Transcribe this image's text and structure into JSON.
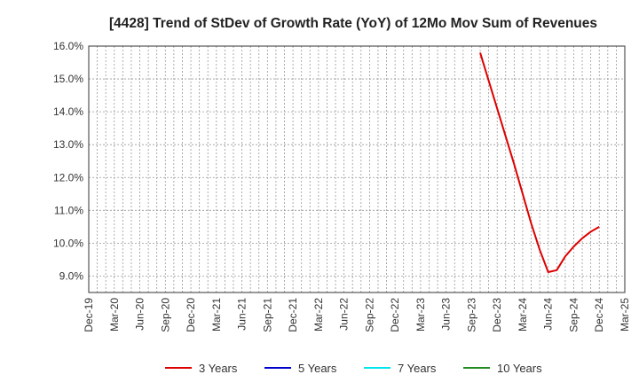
{
  "chart_data": {
    "type": "line",
    "title": "[4428]  Trend of StDev of Growth Rate (YoY) of 12Mo Mov Sum of Revenues",
    "xlabel": "",
    "ylabel": "",
    "x_ticks": [
      "Dec-19",
      "Mar-20",
      "Jun-20",
      "Sep-20",
      "Dec-20",
      "Mar-21",
      "Jun-21",
      "Sep-21",
      "Dec-21",
      "Mar-22",
      "Jun-22",
      "Sep-22",
      "Dec-22",
      "Mar-23",
      "Jun-23",
      "Sep-23",
      "Dec-23",
      "Mar-24",
      "Jun-24",
      "Sep-24",
      "Dec-24",
      "Mar-25"
    ],
    "y_ticks": [
      "9.0%",
      "10.0%",
      "11.0%",
      "12.0%",
      "13.0%",
      "14.0%",
      "15.0%",
      "16.0%"
    ],
    "ylim": [
      8.5,
      16.0
    ],
    "grid": true,
    "legend_position": "bottom",
    "series": [
      {
        "name": "3 Years",
        "color": "#dd0000",
        "points": [
          {
            "x": "Oct-23",
            "y": 15.8
          },
          {
            "x": "Nov-23",
            "y": 14.95
          },
          {
            "x": "Dec-23",
            "y": 14.1
          },
          {
            "x": "Jan-24",
            "y": 13.25
          },
          {
            "x": "Feb-24",
            "y": 12.4
          },
          {
            "x": "Mar-24",
            "y": 11.5
          },
          {
            "x": "Apr-24",
            "y": 10.6
          },
          {
            "x": "May-24",
            "y": 9.8
          },
          {
            "x": "Jun-24",
            "y": 9.12
          },
          {
            "x": "Jul-24",
            "y": 9.18
          },
          {
            "x": "Aug-24",
            "y": 9.6
          },
          {
            "x": "Sep-24",
            "y": 9.9
          },
          {
            "x": "Oct-24",
            "y": 10.15
          },
          {
            "x": "Nov-24",
            "y": 10.35
          },
          {
            "x": "Dec-24",
            "y": 10.5
          }
        ]
      },
      {
        "name": "5 Years",
        "color": "#0000cc",
        "points": []
      },
      {
        "name": "7 Years",
        "color": "#00e5ee",
        "points": []
      },
      {
        "name": "10 Years",
        "color": "#228b22",
        "points": []
      }
    ]
  }
}
